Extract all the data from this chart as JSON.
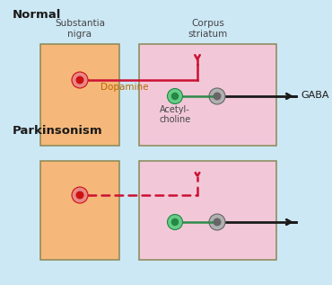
{
  "bg_color": "#cde8f5",
  "orange_fc": "#f5b87a",
  "orange_ec": "#888855",
  "pink_fc": "#f2c8d8",
  "pink_ec": "#888855",
  "title_normal": "Normal",
  "title_parkinson": "Parkinsonism",
  "label_substantia": "Substantia\nnigra",
  "label_corpus": "Corpus\nstriatum",
  "label_dopamine": "Dopamine",
  "label_acetylcholine": "Acetyl-\ncholine",
  "label_gaba": "GABA",
  "red_color": "#cc1133",
  "green_color": "#2e8b4a",
  "gray_fc": "#b0b0b0",
  "gray_ec": "#666666",
  "dark_color": "#1a1a1a",
  "dashed_color": "#cc1133",
  "neuron_red_outer": "#e88888",
  "neuron_red_inner": "#cc1111",
  "neuron_green_outer": "#66cc88",
  "neuron_green_inner": "#228844"
}
